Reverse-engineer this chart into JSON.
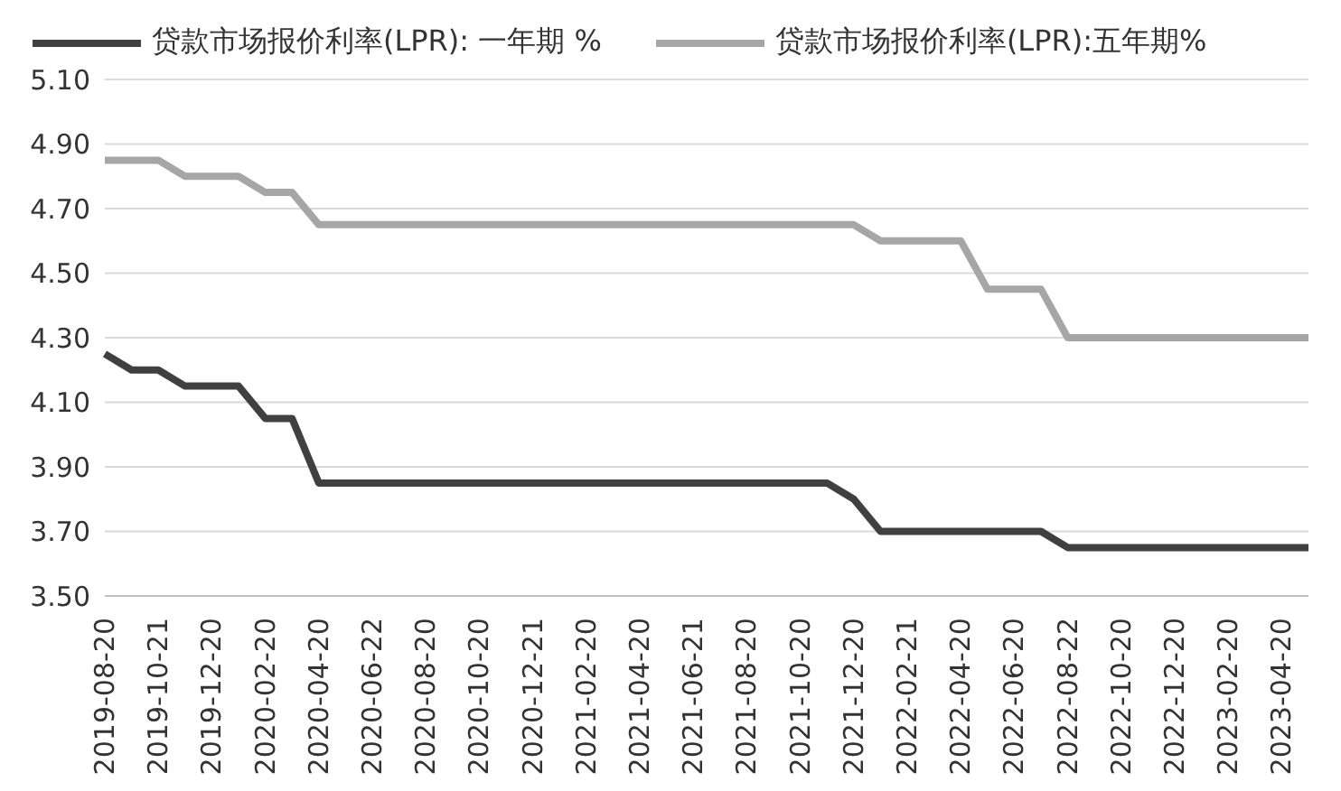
{
  "chart_data": {
    "type": "line",
    "categories": [
      "2019-08-20",
      null,
      "2019-10-21",
      null,
      "2019-12-20",
      null,
      "2020-02-20",
      null,
      "2020-04-20",
      null,
      "2020-06-22",
      null,
      "2020-08-20",
      null,
      "2020-10-20",
      null,
      "2020-12-21",
      null,
      "2021-02-20",
      null,
      "2021-04-20",
      null,
      "2021-06-21",
      null,
      "2021-08-20",
      null,
      "2021-10-20",
      null,
      "2021-12-20",
      null,
      "2022-02-21",
      null,
      "2022-04-20",
      null,
      "2022-06-20",
      null,
      "2022-08-22",
      null,
      "2022-10-20",
      null,
      "2022-12-20",
      null,
      "2023-02-20",
      null,
      "2023-04-20",
      null
    ],
    "series": [
      {
        "name": "贷款市场报价利率(LPR): 一年期 %",
        "color": "#404040",
        "values": [
          4.25,
          4.2,
          4.2,
          4.15,
          4.15,
          4.15,
          4.05,
          4.05,
          3.85,
          3.85,
          3.85,
          3.85,
          3.85,
          3.85,
          3.85,
          3.85,
          3.85,
          3.85,
          3.85,
          3.85,
          3.85,
          3.85,
          3.85,
          3.85,
          3.85,
          3.85,
          3.85,
          3.85,
          3.8,
          3.7,
          3.7,
          3.7,
          3.7,
          3.7,
          3.7,
          3.7,
          3.65,
          3.65,
          3.65,
          3.65,
          3.65,
          3.65,
          3.65,
          3.65,
          3.65,
          3.65
        ]
      },
      {
        "name": "贷款市场报价利率(LPR):五年期%",
        "color": "#a6a6a6",
        "values": [
          4.85,
          4.85,
          4.85,
          4.8,
          4.8,
          4.8,
          4.75,
          4.75,
          4.65,
          4.65,
          4.65,
          4.65,
          4.65,
          4.65,
          4.65,
          4.65,
          4.65,
          4.65,
          4.65,
          4.65,
          4.65,
          4.65,
          4.65,
          4.65,
          4.65,
          4.65,
          4.65,
          4.65,
          4.65,
          4.6,
          4.6,
          4.6,
          4.6,
          4.45,
          4.45,
          4.45,
          4.3,
          4.3,
          4.3,
          4.3,
          4.3,
          4.3,
          4.3,
          4.3,
          4.3,
          4.3
        ]
      }
    ],
    "ylim": [
      3.5,
      5.1
    ],
    "yticks": [
      {
        "value": 3.5,
        "label": "3.50"
      },
      {
        "value": 3.7,
        "label": "3.70"
      },
      {
        "value": 3.9,
        "label": "3.90"
      },
      {
        "value": 4.1,
        "label": "4.10"
      },
      {
        "value": 4.3,
        "label": "4.30"
      },
      {
        "value": 4.5,
        "label": "4.50"
      },
      {
        "value": 4.7,
        "label": "4.70"
      },
      {
        "value": 4.9,
        "label": "4.90"
      },
      {
        "value": 5.1,
        "label": "5.10"
      }
    ],
    "grid": "y",
    "legend": "top",
    "marker": "none",
    "line_style": "solid"
  }
}
